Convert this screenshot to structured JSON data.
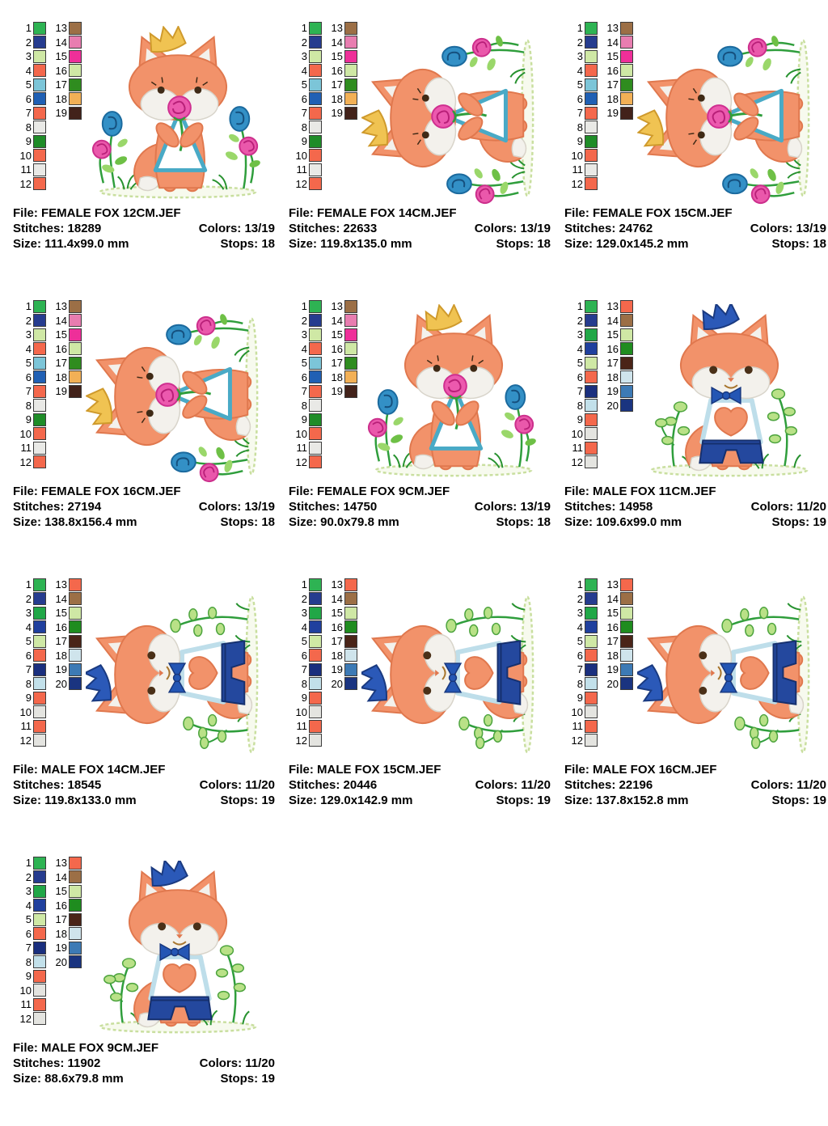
{
  "page": {
    "background": "#ffffff"
  },
  "palettes": {
    "female": {
      "col1": [
        {
          "num": "1",
          "color": "#2eb353"
        },
        {
          "num": "2",
          "color": "#263c8f"
        },
        {
          "num": "3",
          "color": "#cfe8a5"
        },
        {
          "num": "4",
          "color": "#f4684c"
        },
        {
          "num": "5",
          "color": "#7cc5d8"
        },
        {
          "num": "6",
          "color": "#2060b4"
        },
        {
          "num": "7",
          "color": "#f4684c"
        },
        {
          "num": "8",
          "color": "#e9e9e6"
        },
        {
          "num": "9",
          "color": "#1f8c28"
        },
        {
          "num": "10",
          "color": "#f4684c"
        },
        {
          "num": "11",
          "color": "#e9e9e6"
        },
        {
          "num": "12",
          "color": "#f4684c"
        }
      ],
      "col2": [
        {
          "num": "13",
          "color": "#9c6f46"
        },
        {
          "num": "14",
          "color": "#e87db0"
        },
        {
          "num": "15",
          "color": "#ee2f99"
        },
        {
          "num": "16",
          "color": "#cfe8a5"
        },
        {
          "num": "17",
          "color": "#2f8c1f"
        },
        {
          "num": "18",
          "color": "#f2b056"
        },
        {
          "num": "19",
          "color": "#42221a"
        }
      ]
    },
    "male": {
      "col1": [
        {
          "num": "1",
          "color": "#2eb353"
        },
        {
          "num": "2",
          "color": "#263c8f"
        },
        {
          "num": "3",
          "color": "#21a747"
        },
        {
          "num": "4",
          "color": "#20409e"
        },
        {
          "num": "5",
          "color": "#cfe8a5"
        },
        {
          "num": "6",
          "color": "#f4684c"
        },
        {
          "num": "7",
          "color": "#1a2f7e"
        },
        {
          "num": "8",
          "color": "#c2e0ea"
        },
        {
          "num": "9",
          "color": "#f4684c"
        },
        {
          "num": "10",
          "color": "#e4e4e0"
        },
        {
          "num": "11",
          "color": "#f4684c"
        },
        {
          "num": "12",
          "color": "#e4e4e0"
        }
      ],
      "col2": [
        {
          "num": "13",
          "color": "#f4684c"
        },
        {
          "num": "14",
          "color": "#9c6f46"
        },
        {
          "num": "15",
          "color": "#cfe8a5"
        },
        {
          "num": "16",
          "color": "#1f8c1f"
        },
        {
          "num": "17",
          "color": "#4a2418"
        },
        {
          "num": "18",
          "color": "#cfe4ec"
        },
        {
          "num": "19",
          "color": "#3d7ab5"
        },
        {
          "num": "20",
          "color": "#1a3480"
        }
      ]
    }
  },
  "cells": [
    {
      "palette": "female",
      "design": "female",
      "rotated": false,
      "file_line": "File: FEMALE FOX 12CM.JEF",
      "stitches_line": "Stitches: 18289",
      "size_line": "Size: 111.4x99.0 mm",
      "colors_line": "Colors: 13/19",
      "stops_line": "Stops: 18"
    },
    {
      "palette": "female",
      "design": "female",
      "rotated": true,
      "file_line": "File: FEMALE FOX 14CM.JEF",
      "stitches_line": "Stitches: 22633",
      "size_line": "Size: 119.8x135.0 mm",
      "colors_line": "Colors: 13/19",
      "stops_line": "Stops: 18"
    },
    {
      "palette": "female",
      "design": "female",
      "rotated": true,
      "file_line": "File: FEMALE FOX 15CM.JEF",
      "stitches_line": "Stitches: 24762",
      "size_line": "Size: 129.0x145.2 mm",
      "colors_line": "Colors: 13/19",
      "stops_line": "Stops: 18"
    },
    {
      "palette": "female",
      "design": "female",
      "rotated": true,
      "file_line": "File: FEMALE FOX 16CM.JEF",
      "stitches_line": "Stitches: 27194",
      "size_line": "Size: 138.8x156.4 mm",
      "colors_line": "Colors: 13/19",
      "stops_line": "Stops: 18"
    },
    {
      "palette": "female",
      "design": "female",
      "rotated": false,
      "file_line": "File: FEMALE FOX 9CM.JEF",
      "stitches_line": "Stitches: 14750",
      "size_line": "Size: 90.0x79.8 mm",
      "colors_line": "Colors: 13/19",
      "stops_line": "Stops: 18"
    },
    {
      "palette": "male",
      "design": "male",
      "rotated": false,
      "file_line": "File: MALE FOX 11CM.JEF",
      "stitches_line": "Stitches: 14958",
      "size_line": "Size: 109.6x99.0 mm",
      "colors_line": "Colors: 11/20",
      "stops_line": "Stops: 19"
    },
    {
      "palette": "male",
      "design": "male",
      "rotated": true,
      "file_line": "File: MALE FOX 14CM.JEF",
      "stitches_line": "Stitches: 18545",
      "size_line": "Size: 119.8x133.0 mm",
      "colors_line": "Colors: 11/20",
      "stops_line": "Stops: 19"
    },
    {
      "palette": "male",
      "design": "male",
      "rotated": true,
      "file_line": "File: MALE FOX 15CM.JEF",
      "stitches_line": "Stitches: 20446",
      "size_line": "Size: 129.0x142.9 mm",
      "colors_line": "Colors: 11/20",
      "stops_line": "Stops: 19"
    },
    {
      "palette": "male",
      "design": "male",
      "rotated": true,
      "file_line": "File: MALE FOX 16CM.JEF",
      "stitches_line": "Stitches: 22196",
      "size_line": "Size: 137.8x152.8 mm",
      "colors_line": "Colors: 11/20",
      "stops_line": "Stops: 19"
    },
    {
      "palette": "male",
      "design": "male",
      "rotated": false,
      "file_line": "File: MALE FOX 9CM.JEF",
      "stitches_line": "Stitches: 11902",
      "size_line": "Size: 88.6x79.8 mm",
      "colors_line": "Colors: 11/20",
      "stops_line": "Stops: 19"
    }
  ],
  "artwork_colors": {
    "fox_orange": "#f2926a",
    "fox_outline": "#e0784e",
    "fox_white": "#f3f1ec",
    "female_dress_teal": "#49aac6",
    "rose_pink": "#ec59ae",
    "rose_blue": "#3390c6",
    "crown_gold": "#f0c352",
    "male_blue": "#2b59b8",
    "shorts_navy": "#24489e",
    "leaf_green": "#2f9e3c",
    "pale_leaf": "#b9e187",
    "ground_pale": "#c9df9f"
  }
}
